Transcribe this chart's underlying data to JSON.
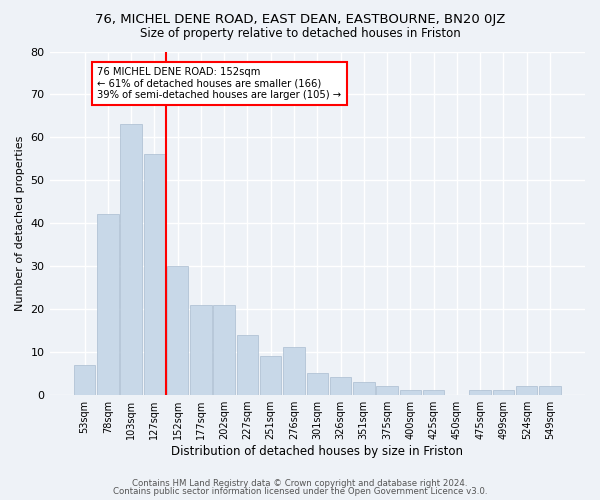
{
  "title": "76, MICHEL DENE ROAD, EAST DEAN, EASTBOURNE, BN20 0JZ",
  "subtitle": "Size of property relative to detached houses in Friston",
  "xlabel": "Distribution of detached houses by size in Friston",
  "ylabel": "Number of detached properties",
  "bar_color": "#c8d8e8",
  "bar_edgecolor": "#aabdd0",
  "vline_color": "red",
  "annotation_text": "76 MICHEL DENE ROAD: 152sqm\n← 61% of detached houses are smaller (166)\n39% of semi-detached houses are larger (105) →",
  "annotation_box_color": "white",
  "annotation_box_edgecolor": "red",
  "categories": [
    "53sqm",
    "78sqm",
    "103sqm",
    "127sqm",
    "152sqm",
    "177sqm",
    "202sqm",
    "227sqm",
    "251sqm",
    "276sqm",
    "301sqm",
    "326sqm",
    "351sqm",
    "375sqm",
    "400sqm",
    "425sqm",
    "450sqm",
    "475sqm",
    "499sqm",
    "524sqm",
    "549sqm"
  ],
  "values": [
    7,
    42,
    63,
    56,
    30,
    21,
    21,
    14,
    9,
    11,
    5,
    4,
    3,
    2,
    1,
    1,
    0,
    1,
    1,
    2,
    2
  ],
  "ylim": [
    0,
    80
  ],
  "yticks": [
    0,
    10,
    20,
    30,
    40,
    50,
    60,
    70,
    80
  ],
  "footer1": "Contains HM Land Registry data © Crown copyright and database right 2024.",
  "footer2": "Contains public sector information licensed under the Open Government Licence v3.0.",
  "background_color": "#eef2f7",
  "grid_color": "white"
}
